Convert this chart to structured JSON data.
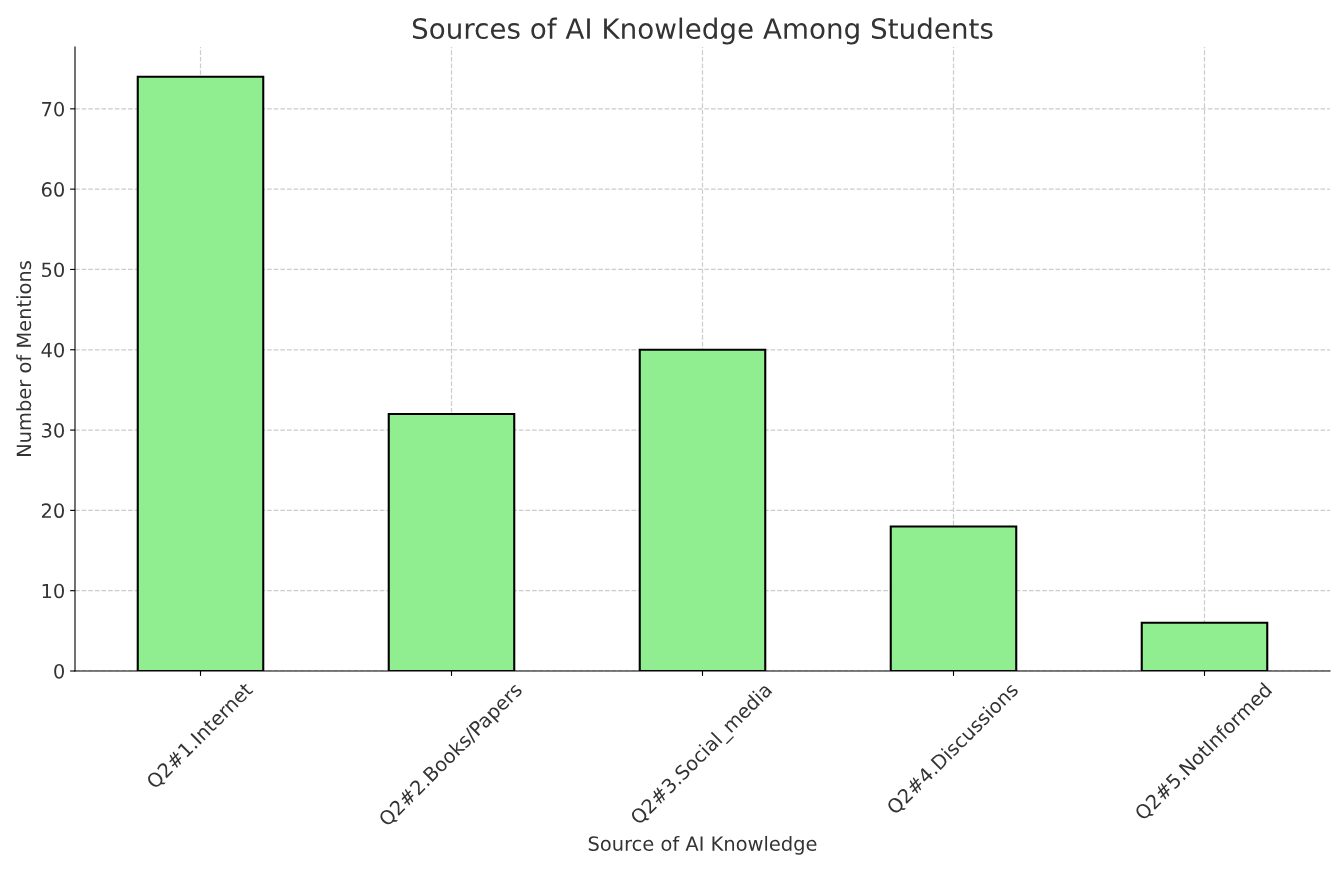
{
  "chart_data": {
    "type": "bar",
    "title": "Sources of AI Knowledge Among Students",
    "xlabel": "Source of AI Knowledge",
    "ylabel": "Number of Mentions",
    "categories": [
      "Q2#1.Internet",
      "Q2#2.Books/Papers",
      "Q2#3.Social_media",
      "Q2#4.Discussions",
      "Q2#5.NotInformed"
    ],
    "values": [
      74,
      32,
      40,
      18,
      6
    ],
    "color": "#90ee90",
    "ylim": [
      0,
      77.7
    ],
    "yticks": [
      0,
      10,
      20,
      30,
      40,
      50,
      60,
      70
    ],
    "grid": true,
    "line_style": "dashed"
  }
}
